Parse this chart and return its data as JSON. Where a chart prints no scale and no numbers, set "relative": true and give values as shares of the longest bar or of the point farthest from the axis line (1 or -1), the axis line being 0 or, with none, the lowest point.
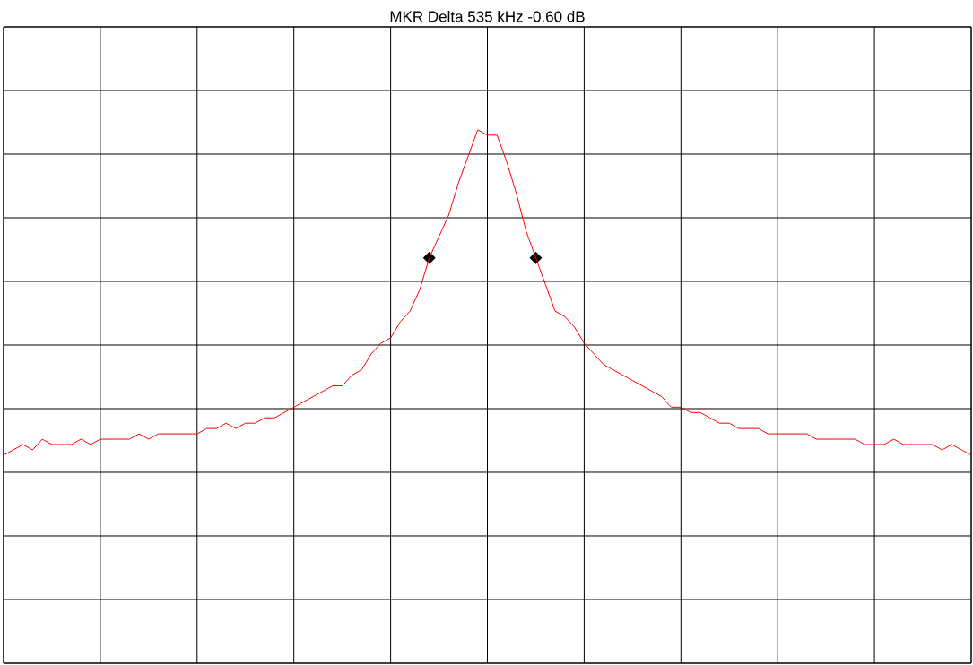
{
  "chart_data": {
    "type": "line",
    "title": "MKR Delta  535 kHz  -0.60 dB",
    "relative": true,
    "grid": true,
    "categories": [
      null,
      null,
      null,
      null,
      null,
      null,
      null,
      null,
      null,
      null,
      null,
      null,
      null,
      null,
      null,
      null,
      null,
      null,
      null,
      null,
      null,
      null,
      null,
      null,
      null,
      null,
      null,
      null,
      null,
      null,
      null,
      null,
      null,
      null,
      null,
      null,
      null,
      null,
      null,
      null,
      null,
      null,
      null,
      null,
      null,
      null,
      null,
      null,
      null,
      null,
      null,
      null,
      null,
      null,
      null,
      null,
      null,
      null,
      null,
      null,
      null,
      null,
      null,
      null,
      null,
      null,
      null,
      null,
      null,
      null,
      null,
      null,
      null,
      null,
      null,
      null,
      null,
      null,
      null,
      null,
      null,
      null,
      null,
      null,
      null,
      null,
      null,
      null,
      null,
      null,
      null,
      null,
      null,
      null,
      null,
      null,
      null,
      null,
      null,
      null,
      null
    ],
    "series": [
      {
        "color": "#ff0000",
        "values": [
          0.39,
          0.4,
          0.41,
          0.4,
          0.42,
          0.41,
          0.41,
          0.41,
          0.42,
          0.41,
          0.42,
          0.42,
          0.42,
          0.42,
          0.43,
          0.42,
          0.43,
          0.43,
          0.43,
          0.43,
          0.43,
          0.44,
          0.44,
          0.45,
          0.44,
          0.45,
          0.45,
          0.46,
          0.46,
          0.47,
          0.48,
          0.49,
          0.5,
          0.51,
          0.52,
          0.52,
          0.54,
          0.55,
          0.58,
          0.6,
          0.61,
          0.64,
          0.66,
          0.7,
          0.76,
          0.8,
          0.84,
          0.9,
          0.95,
          1.0,
          0.99,
          0.99,
          0.94,
          0.88,
          0.81,
          0.76,
          0.71,
          0.66,
          0.65,
          0.63,
          0.6,
          0.58,
          0.56,
          0.55,
          0.54,
          0.53,
          0.52,
          0.51,
          0.5,
          0.48,
          0.48,
          0.47,
          0.47,
          0.46,
          0.45,
          0.45,
          0.44,
          0.44,
          0.44,
          0.43,
          0.43,
          0.43,
          0.43,
          0.43,
          0.42,
          0.42,
          0.42,
          0.42,
          0.42,
          0.41,
          0.41,
          0.41,
          0.42,
          0.41,
          0.41,
          0.41,
          0.41,
          0.4,
          0.41,
          0.4,
          0.39
        ]
      }
    ]
  }
}
